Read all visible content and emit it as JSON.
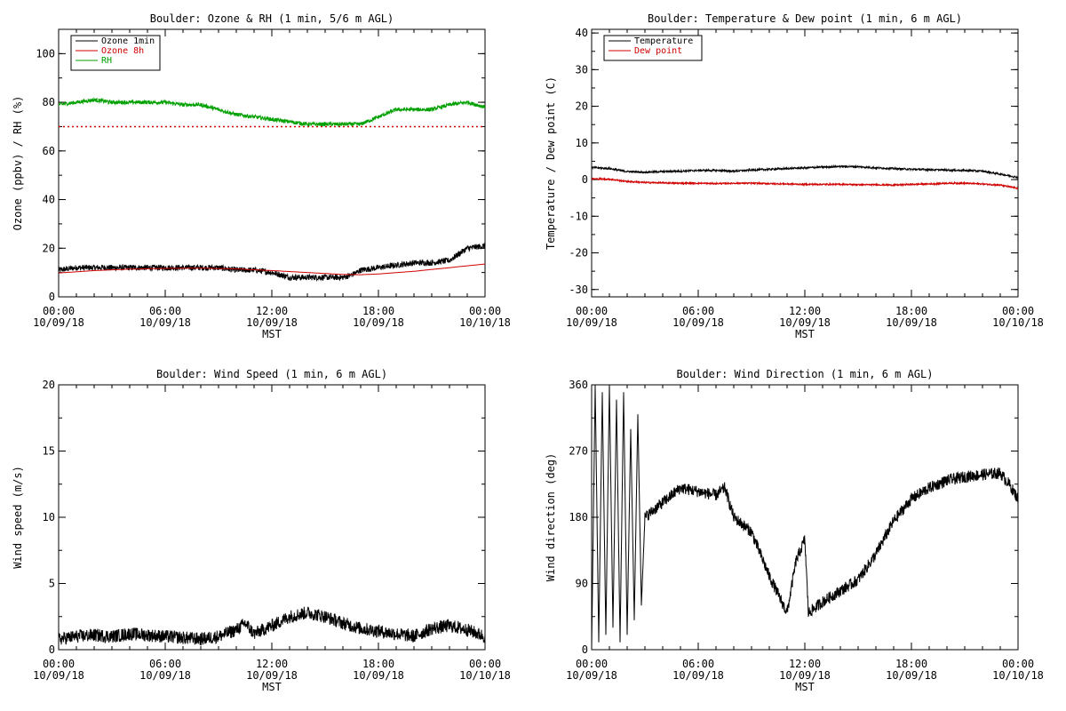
{
  "chart_data": [
    {
      "type": "line",
      "title": "Boulder: Ozone & RH (1 min, 5/6 m AGL)",
      "xlabel": "MST",
      "ylabel": "Ozone (ppbv) / RH (%)",
      "xlim": [
        "10/09/18 00:00",
        "10/10/18 00:00"
      ],
      "ylim": [
        0,
        110
      ],
      "yticks": [
        0,
        20,
        40,
        60,
        80,
        100
      ],
      "xticks": [
        {
          "time": "00:00",
          "date": "10/09/18"
        },
        {
          "time": "06:00",
          "date": "10/09/18"
        },
        {
          "time": "12:00",
          "date": "10/09/18"
        },
        {
          "time": "18:00",
          "date": "10/09/18"
        },
        {
          "time": "00:00",
          "date": "10/10/18"
        }
      ],
      "legend": {
        "position": "top-left"
      },
      "series": [
        {
          "name": "Ozone 1min",
          "color": "#000000",
          "style": "solid",
          "x_hours": [
            0,
            1,
            2,
            3,
            4,
            5,
            6,
            7,
            8,
            9,
            10,
            11,
            12,
            13,
            14,
            15,
            16,
            16.5,
            17,
            18,
            19,
            20,
            21,
            22,
            23,
            24
          ],
          "y": [
            11,
            12,
            12,
            12,
            12,
            12,
            12,
            12,
            12,
            12,
            11,
            11,
            10,
            8,
            8,
            8,
            8,
            9,
            11,
            12,
            13,
            14,
            14,
            15,
            20,
            21
          ]
        },
        {
          "name": "Ozone 8h",
          "color": "#d00000",
          "style": "solid",
          "x_hours": [
            0,
            2,
            4,
            6,
            8,
            10,
            12,
            14,
            16,
            17,
            18,
            20,
            22,
            24
          ],
          "y": [
            9.8,
            10.8,
            11.4,
            11.7,
            11.8,
            11.5,
            10.8,
            10.0,
            9.2,
            9.1,
            9.4,
            10.5,
            12.0,
            13.5
          ]
        },
        {
          "name": "",
          "color": "#d00000",
          "style": "dotted",
          "x_hours": [
            0,
            24
          ],
          "y": [
            70,
            70
          ]
        },
        {
          "name": "RH",
          "color": "#00a000",
          "style": "solid",
          "x_hours": [
            0,
            1,
            2,
            3,
            4,
            5,
            6,
            7,
            8,
            9,
            10,
            11,
            12,
            13,
            14,
            15,
            16,
            17,
            18,
            19,
            20,
            21,
            22,
            23,
            24
          ],
          "y": [
            79,
            80,
            81,
            80,
            80,
            80,
            80,
            79,
            79,
            77,
            75,
            74,
            73,
            72,
            71,
            71,
            71,
            71,
            74,
            77,
            77,
            77,
            79,
            80,
            78
          ]
        }
      ]
    },
    {
      "type": "line",
      "title": "Boulder: Temperature & Dew point (1 min, 6 m AGL)",
      "xlabel": "MST",
      "ylabel": "Temperature / Dew point (C)",
      "xlim": [
        "10/09/18 00:00",
        "10/10/18 00:00"
      ],
      "ylim": [
        -32,
        41
      ],
      "yticks": [
        -30,
        -20,
        -10,
        0,
        10,
        20,
        30,
        40
      ],
      "xticks": [
        {
          "time": "00:00",
          "date": "10/09/18"
        },
        {
          "time": "06:00",
          "date": "10/09/18"
        },
        {
          "time": "12:00",
          "date": "10/09/18"
        },
        {
          "time": "18:00",
          "date": "10/09/18"
        },
        {
          "time": "00:00",
          "date": "10/10/18"
        }
      ],
      "legend": {
        "position": "top-left"
      },
      "series": [
        {
          "name": "Temperature",
          "color": "#000000",
          "style": "solid",
          "x_hours": [
            0,
            1,
            2,
            3,
            4,
            5,
            6,
            7,
            8,
            9,
            10,
            11,
            12,
            13,
            14,
            15,
            16,
            17,
            18,
            19,
            20,
            21,
            22,
            23,
            24
          ],
          "y": [
            3.3,
            3.0,
            2.2,
            2.0,
            2.2,
            2.3,
            2.5,
            2.5,
            2.3,
            2.6,
            2.8,
            3.0,
            3.2,
            3.4,
            3.6,
            3.5,
            3.2,
            3.0,
            2.8,
            2.7,
            2.6,
            2.5,
            2.3,
            1.5,
            0.6
          ]
        },
        {
          "name": "Dew point",
          "color": "#d00000",
          "style": "solid",
          "x_hours": [
            0,
            1,
            2,
            3,
            4,
            5,
            6,
            7,
            8,
            9,
            10,
            11,
            12,
            13,
            14,
            15,
            16,
            17,
            18,
            19,
            20,
            21,
            22,
            23,
            24
          ],
          "y": [
            0.2,
            0.1,
            -0.5,
            -0.8,
            -0.9,
            -1.0,
            -1.0,
            -1.1,
            -1.0,
            -1.0,
            -1.1,
            -1.2,
            -1.3,
            -1.3,
            -1.3,
            -1.4,
            -1.4,
            -1.5,
            -1.3,
            -1.2,
            -1.0,
            -1.0,
            -1.2,
            -1.5,
            -2.4
          ]
        }
      ]
    },
    {
      "type": "line",
      "title": "Boulder: Wind Speed (1 min, 6 m AGL)",
      "xlabel": "MST",
      "ylabel": "Wind speed (m/s)",
      "xlim": [
        "10/09/18 00:00",
        "10/10/18 00:00"
      ],
      "ylim": [
        0,
        20
      ],
      "yticks": [
        0,
        5,
        10,
        15,
        20
      ],
      "xticks": [
        {
          "time": "00:00",
          "date": "10/09/18"
        },
        {
          "time": "06:00",
          "date": "10/09/18"
        },
        {
          "time": "12:00",
          "date": "10/09/18"
        },
        {
          "time": "18:00",
          "date": "10/09/18"
        },
        {
          "time": "00:00",
          "date": "10/10/18"
        }
      ],
      "series": [
        {
          "name": "",
          "color": "#000000",
          "style": "solid",
          "x_hours": [
            0,
            1,
            2,
            3,
            4,
            5,
            6,
            7,
            8,
            9,
            10,
            10.5,
            11,
            12,
            13,
            14,
            15,
            16,
            17,
            18,
            19,
            20,
            21,
            22,
            23,
            24
          ],
          "y": [
            0.8,
            1.0,
            1.1,
            1.0,
            1.2,
            1.1,
            1.0,
            0.9,
            0.8,
            1.0,
            1.5,
            2.0,
            1.2,
            1.8,
            2.5,
            2.8,
            2.5,
            2.0,
            1.6,
            1.4,
            1.2,
            1.0,
            1.6,
            1.8,
            1.5,
            1.0
          ]
        }
      ]
    },
    {
      "type": "line",
      "title": "Boulder: Wind Direction (1 min, 6 m AGL)",
      "xlabel": "MST",
      "ylabel": "Wind direction (deg)",
      "xlim": [
        "10/09/18 00:00",
        "10/10/18 00:00"
      ],
      "ylim": [
        0,
        360
      ],
      "yticks": [
        0,
        90,
        180,
        270,
        360
      ],
      "xticks": [
        {
          "time": "00:00",
          "date": "10/09/18"
        },
        {
          "time": "06:00",
          "date": "10/09/18"
        },
        {
          "time": "12:00",
          "date": "10/09/18"
        },
        {
          "time": "18:00",
          "date": "10/09/18"
        },
        {
          "time": "00:00",
          "date": "10/10/18"
        }
      ],
      "series": [
        {
          "name": "",
          "color": "#000000",
          "style": "solid",
          "x_hours": [
            0,
            0.2,
            0.4,
            0.6,
            0.8,
            1.0,
            1.2,
            1.4,
            1.6,
            1.8,
            2.0,
            2.2,
            2.4,
            2.6,
            2.8,
            3.0,
            4,
            5,
            6,
            7,
            7.5,
            8,
            9,
            10,
            11,
            11.5,
            12,
            12.2,
            13,
            14,
            15,
            16,
            17,
            18,
            19,
            20,
            21,
            22,
            23,
            23.5,
            24
          ],
          "y": [
            0,
            360,
            10,
            350,
            20,
            360,
            30,
            340,
            10,
            350,
            20,
            300,
            40,
            320,
            60,
            180,
            200,
            220,
            215,
            210,
            220,
            180,
            160,
            100,
            50,
            120,
            150,
            50,
            65,
            80,
            95,
            130,
            175,
            205,
            220,
            230,
            235,
            238,
            240,
            225,
            205
          ]
        }
      ]
    }
  ]
}
